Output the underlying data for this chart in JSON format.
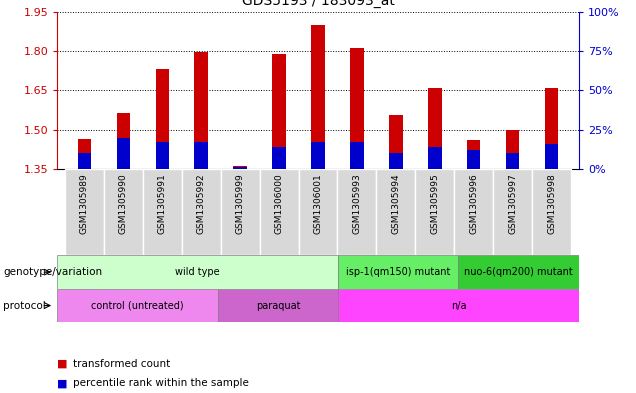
{
  "title": "GDS5193 / 183093_at",
  "samples": [
    "GSM1305989",
    "GSM1305990",
    "GSM1305991",
    "GSM1305992",
    "GSM1305999",
    "GSM1306000",
    "GSM1306001",
    "GSM1305993",
    "GSM1305994",
    "GSM1305995",
    "GSM1305996",
    "GSM1305997",
    "GSM1305998"
  ],
  "red_values": [
    1.465,
    1.565,
    1.73,
    1.795,
    1.36,
    1.79,
    1.9,
    1.81,
    1.555,
    1.66,
    1.46,
    1.5,
    1.66
  ],
  "blue_values_pct": [
    10,
    20,
    17,
    17,
    1,
    14,
    17,
    17,
    10,
    14,
    12,
    10,
    16
  ],
  "ylim_left": [
    1.35,
    1.95
  ],
  "ylim_right": [
    0,
    100
  ],
  "yticks_left": [
    1.35,
    1.5,
    1.65,
    1.8,
    1.95
  ],
  "yticks_right": [
    0,
    25,
    50,
    75,
    100
  ],
  "bar_width": 0.35,
  "base": 1.35,
  "genotype_groups": [
    {
      "label": "wild type",
      "start": 0,
      "end": 7,
      "color": "#ccffcc"
    },
    {
      "label": "isp-1(qm150) mutant",
      "start": 7,
      "end": 10,
      "color": "#66ee66"
    },
    {
      "label": "nuo-6(qm200) mutant",
      "start": 10,
      "end": 13,
      "color": "#33cc33"
    }
  ],
  "protocol_groups": [
    {
      "label": "control (untreated)",
      "start": 0,
      "end": 4,
      "color": "#ee88ee"
    },
    {
      "label": "paraquat",
      "start": 4,
      "end": 7,
      "color": "#cc66cc"
    },
    {
      "label": "n/a",
      "start": 7,
      "end": 13,
      "color": "#ff44ff"
    }
  ],
  "legend_red": "transformed count",
  "legend_blue": "percentile rank within the sample",
  "geno_label": "genotype/variation",
  "proto_label": "protocol",
  "red_color": "#cc0000",
  "blue_color": "#0000cc",
  "tick_color_left": "#cc0000",
  "tick_color_right": "#0000cc",
  "gray_box": "#d8d8d8",
  "fig_width": 6.36,
  "fig_height": 3.93
}
